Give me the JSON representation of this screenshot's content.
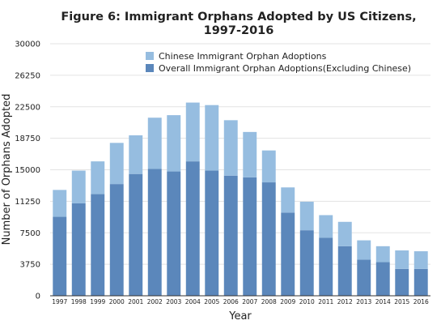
{
  "chart_data": {
    "type": "bar",
    "stacked": true,
    "title": "Figure 6: Immigrant Orphans Adopted by US Citizens, 1997-2016",
    "title_lines": [
      "Figure 6: Immigrant Orphans Adopted by US Citizens,",
      "1997-2016"
    ],
    "xlabel": "Year",
    "ylabel": "Number of Orphans Adopted",
    "ylim": [
      0,
      30000
    ],
    "yticks": [
      "0",
      "3750",
      "7500",
      "11250",
      "15000",
      "18750",
      "22500",
      "26250",
      "30000"
    ],
    "grid": true,
    "legend_position": "top-center",
    "categories": [
      "1997",
      "1998",
      "1999",
      "2000",
      "2001",
      "2002",
      "2003",
      "2004",
      "2005",
      "2006",
      "2007",
      "2008",
      "2009",
      "2010",
      "2011",
      "2012",
      "2013",
      "2014",
      "2015",
      "2016"
    ],
    "series": [
      {
        "name": "Overall Immigrant Orphan Adoptions(Excluding Chinese)",
        "color": "#5b87bb",
        "values": [
          9400,
          11000,
          12100,
          13300,
          14500,
          15100,
          14800,
          16000,
          14900,
          14300,
          14100,
          13500,
          9900,
          7800,
          6900,
          5900,
          4300,
          4000,
          3200,
          3200
        ]
      },
      {
        "name": "Chinese Immigrant Orphan Adoptions",
        "color": "#96bde0",
        "values": [
          3200,
          3900,
          3900,
          4900,
          4600,
          6100,
          6700,
          7000,
          7800,
          6600,
          5400,
          3800,
          3000,
          3400,
          2700,
          2900,
          2300,
          1900,
          2200,
          2100
        ]
      }
    ]
  }
}
